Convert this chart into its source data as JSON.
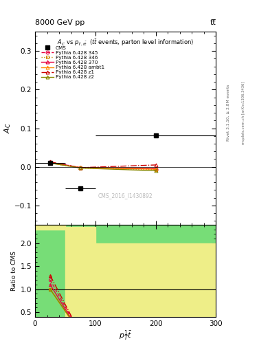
{
  "title_top": "8000 GeV pp",
  "title_top_right": "tt̅",
  "watermark": "CMS_2016_I1430892",
  "rivet_label": "Rivet 3.1.10, ≥ 2.8M events",
  "mcplots_label": "mcplots.cern.ch [arXiv:1306.3436]",
  "xlim": [
    0,
    300
  ],
  "ylim_main": [
    -0.15,
    0.35
  ],
  "ylim_ratio": [
    0.4,
    2.4
  ],
  "cms_data": {
    "x": [
      25,
      75,
      200
    ],
    "y": [
      0.01,
      -0.055,
      0.082
    ],
    "xerr": [
      25,
      25,
      100
    ]
  },
  "bin_edges": [
    0,
    50,
    100,
    300
  ],
  "bin_centers": [
    25,
    75,
    200
  ],
  "pythia_series": [
    {
      "label": "Pythia 6.428 345",
      "color": "#e8003f",
      "linestyle": "--",
      "marker": "o",
      "y": [
        0.012,
        -0.002,
        -0.005
      ]
    },
    {
      "label": "Pythia 6.428 346",
      "color": "#cc8800",
      "linestyle": ":",
      "marker": "s",
      "y": [
        0.01,
        -0.003,
        -0.007
      ]
    },
    {
      "label": "Pythia 6.428 370",
      "color": "#e8003f",
      "linestyle": "-",
      "marker": "^",
      "y": [
        0.011,
        -0.002,
        -0.004
      ]
    },
    {
      "label": "Pythia 6.428 ambt1",
      "color": "#ff8800",
      "linestyle": "-",
      "marker": "^",
      "y": [
        0.01,
        -0.002,
        -0.006
      ]
    },
    {
      "label": "Pythia 6.428 z1",
      "color": "#cc0000",
      "linestyle": "-.",
      "marker": "^",
      "y": [
        0.013,
        -0.002,
        0.005
      ]
    },
    {
      "label": "Pythia 6.428 z2",
      "color": "#888800",
      "linestyle": "-",
      "marker": "^",
      "y": [
        0.01,
        -0.003,
        -0.01
      ]
    }
  ],
  "ratio_green_color": "#77dd77",
  "ratio_yellow_color": "#eeee88",
  "green_bands": [
    {
      "x": [
        0,
        300
      ],
      "ylo": 0.4,
      "yhi": 2.4
    }
  ],
  "yellow_bands": [
    {
      "x": [
        0,
        50
      ],
      "ylo": 2.3,
      "yhi": 2.4
    },
    {
      "x": [
        50,
        100
      ],
      "ylo": 0.4,
      "yhi": 2.35
    },
    {
      "x": [
        100,
        300
      ],
      "ylo": 0.4,
      "yhi": 2.0
    }
  ],
  "yticks_main": [
    -0.1,
    0.0,
    0.1,
    0.2,
    0.3
  ],
  "yticks_ratio": [
    0.5,
    1.0,
    1.5,
    2.0
  ],
  "xticks": [
    0,
    100,
    200,
    300
  ]
}
